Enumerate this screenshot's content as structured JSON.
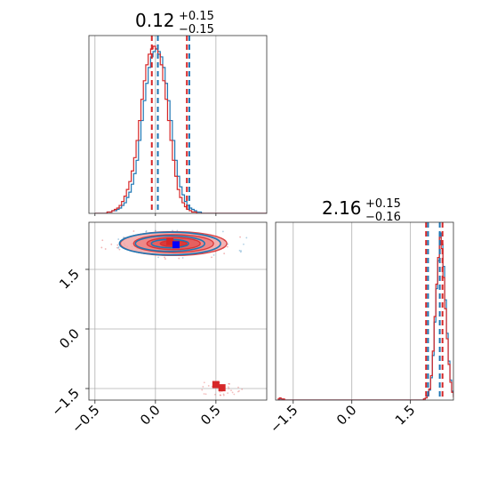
{
  "chart_data": {
    "type": "corner",
    "parameters": 2,
    "colors": {
      "series_a": "#1f77b4",
      "series_b": "#d62728"
    },
    "ticks": {
      "x0": [
        -0.5,
        0.0,
        0.5
      ],
      "y1": [
        -1.5,
        0.0,
        1.5
      ],
      "x1": [
        -1.5,
        0.0,
        1.5
      ],
      "x0_labels": [
        "−0.5",
        "0.0",
        "0.5"
      ],
      "y1_labels": [
        "−1.5",
        "0.0",
        "1.5"
      ],
      "x1_labels": [
        "−1.5",
        "0.0",
        "1.5"
      ]
    },
    "ranges": {
      "x0": [
        -0.55,
        0.92
      ],
      "x1": [
        -1.95,
        2.6
      ]
    },
    "titles": [
      {
        "value": "0.12",
        "plus": "+0.15",
        "minus": "−0.15"
      },
      {
        "value": "2.16",
        "plus": "+0.15",
        "minus": "−0.16"
      }
    ],
    "quantiles": {
      "param0": {
        "series_a": [
          0.02,
          0.28
        ],
        "series_b": [
          -0.03,
          0.26
        ]
      },
      "param1": {
        "series_a": [
          1.95,
          2.25
        ],
        "series_b": [
          1.9,
          2.32
        ]
      }
    },
    "hist_param0": {
      "bin_start": -0.5,
      "bin_width": 0.02,
      "series_a": [
        0,
        0,
        0,
        0,
        0,
        1,
        1,
        2,
        2,
        3,
        4,
        6,
        8,
        12,
        16,
        22,
        30,
        40,
        55,
        70,
        85,
        98,
        110,
        118,
        122,
        124,
        122,
        118,
        110,
        98,
        85,
        70,
        55,
        40,
        28,
        20,
        14,
        9,
        6,
        4,
        3,
        2,
        1,
        1,
        0,
        0,
        0,
        0,
        0,
        0,
        0,
        0,
        0,
        0,
        0,
        0,
        0,
        0,
        0,
        0,
        0,
        0,
        0,
        0,
        0,
        0,
        0,
        0,
        0,
        0,
        0,
        0,
        0
      ],
      "series_b": [
        0,
        0,
        0,
        0,
        0,
        1,
        1,
        2,
        3,
        4,
        6,
        9,
        13,
        18,
        24,
        32,
        42,
        55,
        70,
        86,
        100,
        112,
        120,
        124,
        126,
        124,
        120,
        112,
        100,
        86,
        70,
        55,
        40,
        28,
        18,
        12,
        8,
        5,
        3,
        2,
        1,
        1,
        0,
        0,
        0,
        0,
        0,
        0,
        0,
        0,
        0,
        0,
        0,
        0,
        0,
        0,
        0,
        0,
        0,
        0,
        0,
        0,
        0,
        0,
        0,
        0,
        0,
        0,
        0,
        0,
        0,
        0,
        0
      ]
    },
    "hist_param1": {
      "bin_start": -1.9,
      "bin_width": 0.045,
      "series_a": [
        0,
        1,
        1,
        0,
        0,
        0,
        0,
        0,
        0,
        0,
        0,
        0,
        0,
        0,
        0,
        0,
        0,
        0,
        0,
        0,
        0,
        0,
        0,
        0,
        0,
        0,
        0,
        0,
        0,
        0,
        0,
        0,
        0,
        0,
        0,
        0,
        0,
        0,
        0,
        0,
        0,
        0,
        0,
        0,
        0,
        0,
        0,
        0,
        0,
        0,
        0,
        0,
        0,
        0,
        0,
        0,
        0,
        0,
        0,
        0,
        0,
        0,
        0,
        0,
        0,
        0,
        0,
        0,
        0,
        0,
        0,
        0,
        0,
        0,
        0,
        0,
        0,
        0,
        0,
        0,
        0,
        0,
        0,
        1,
        2,
        4,
        9,
        20,
        40,
        70,
        100,
        125,
        150,
        140,
        120,
        90,
        60,
        35,
        18,
        8,
        4,
        2,
        1,
        0
      ],
      "series_b": [
        1,
        2,
        1,
        1,
        0,
        0,
        0,
        0,
        0,
        0,
        0,
        0,
        0,
        0,
        0,
        0,
        0,
        0,
        0,
        0,
        0,
        0,
        0,
        0,
        0,
        0,
        0,
        0,
        0,
        0,
        0,
        0,
        0,
        0,
        0,
        0,
        0,
        0,
        0,
        0,
        0,
        0,
        0,
        0,
        0,
        0,
        0,
        0,
        0,
        0,
        0,
        0,
        0,
        0,
        0,
        0,
        0,
        0,
        0,
        0,
        0,
        0,
        0,
        0,
        0,
        0,
        0,
        0,
        0,
        0,
        0,
        0,
        0,
        0,
        0,
        0,
        0,
        0,
        0,
        0,
        0,
        0,
        0,
        1,
        2,
        4,
        10,
        22,
        44,
        75,
        104,
        128,
        146,
        136,
        110,
        82,
        55,
        32,
        16,
        7,
        3,
        2,
        1,
        0
      ]
    },
    "joint": {
      "main_cluster": {
        "x": 0.15,
        "y": 2.15,
        "sx": 0.22,
        "sy": 0.15
      },
      "minor_cluster": {
        "x": 0.55,
        "y": -1.5
      },
      "markers_series_a": [
        {
          "x": 0.17,
          "y": 2.12
        }
      ],
      "markers_series_b": [
        {
          "x": 0.12,
          "y": 2.2
        },
        {
          "x": 0.5,
          "y": -1.4
        },
        {
          "x": 0.55,
          "y": -1.48
        }
      ]
    }
  }
}
